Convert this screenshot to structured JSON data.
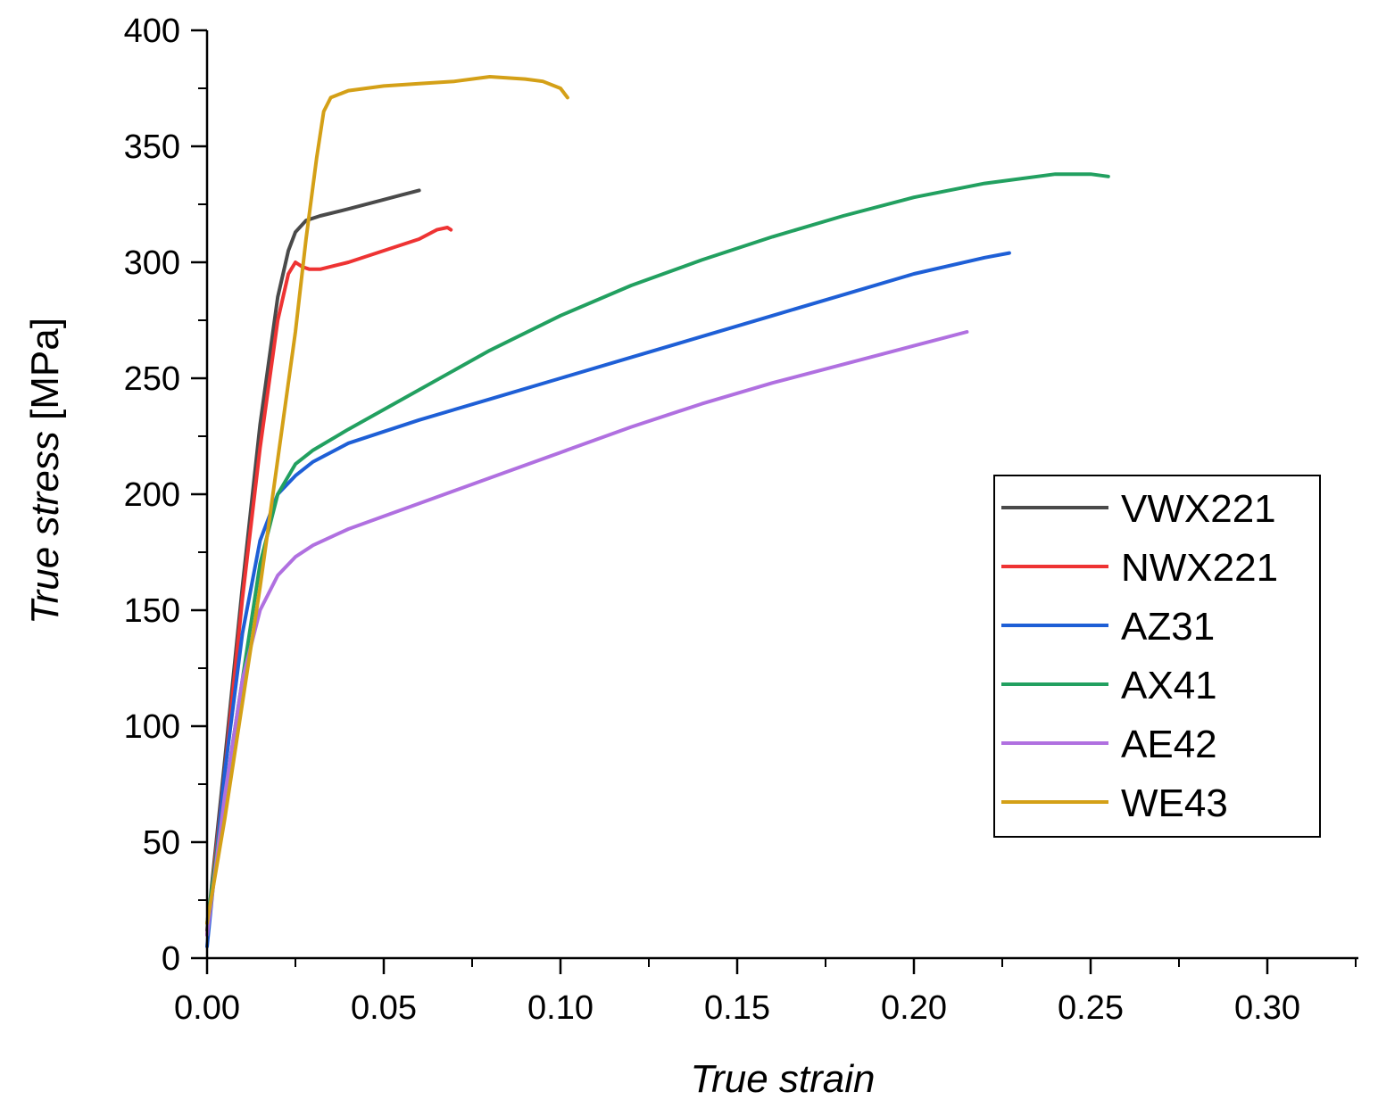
{
  "chart_data": {
    "type": "line",
    "title": "",
    "xlabel": "True strain",
    "ylabel_italic": "True stress",
    "ylabel_unit": " [MPa]",
    "xlim": [
      0,
      0.325
    ],
    "ylim": [
      0,
      400
    ],
    "x_ticks": [
      0.0,
      0.05,
      0.1,
      0.15,
      0.2,
      0.25,
      0.3
    ],
    "x_tick_labels": [
      "0.00",
      "0.05",
      "0.10",
      "0.15",
      "0.20",
      "0.25",
      "0.30"
    ],
    "y_ticks": [
      0,
      50,
      100,
      150,
      200,
      250,
      300,
      350,
      400
    ],
    "y_tick_labels": [
      "0",
      "50",
      "100",
      "150",
      "200",
      "250",
      "300",
      "350",
      "400"
    ],
    "grid": false,
    "legend_position": "right",
    "series": [
      {
        "name": "VWX221",
        "color": "#4a4a4a",
        "points": [
          [
            0,
            12
          ],
          [
            0.005,
            85
          ],
          [
            0.01,
            160
          ],
          [
            0.015,
            230
          ],
          [
            0.02,
            285
          ],
          [
            0.023,
            305
          ],
          [
            0.025,
            313
          ],
          [
            0.028,
            318
          ],
          [
            0.032,
            320
          ],
          [
            0.04,
            323
          ],
          [
            0.05,
            327
          ],
          [
            0.055,
            329
          ],
          [
            0.06,
            331
          ]
        ]
      },
      {
        "name": "NWX221",
        "color": "#ee3333",
        "points": [
          [
            0,
            10
          ],
          [
            0.005,
            80
          ],
          [
            0.01,
            155
          ],
          [
            0.015,
            220
          ],
          [
            0.02,
            275
          ],
          [
            0.023,
            295
          ],
          [
            0.025,
            300
          ],
          [
            0.027,
            298
          ],
          [
            0.029,
            297
          ],
          [
            0.032,
            297
          ],
          [
            0.04,
            300
          ],
          [
            0.05,
            305
          ],
          [
            0.06,
            310
          ],
          [
            0.065,
            314
          ],
          [
            0.068,
            315
          ],
          [
            0.069,
            314
          ]
        ]
      },
      {
        "name": "AZ31",
        "color": "#1e5fd6",
        "points": [
          [
            0,
            5
          ],
          [
            0.005,
            80
          ],
          [
            0.01,
            140
          ],
          [
            0.015,
            180
          ],
          [
            0.02,
            200
          ],
          [
            0.025,
            208
          ],
          [
            0.03,
            214
          ],
          [
            0.04,
            222
          ],
          [
            0.06,
            232
          ],
          [
            0.08,
            241
          ],
          [
            0.1,
            250
          ],
          [
            0.12,
            259
          ],
          [
            0.14,
            268
          ],
          [
            0.16,
            277
          ],
          [
            0.18,
            286
          ],
          [
            0.2,
            295
          ],
          [
            0.22,
            302
          ],
          [
            0.227,
            304
          ]
        ]
      },
      {
        "name": "AX41",
        "color": "#22a060",
        "points": [
          [
            0,
            15
          ],
          [
            0.005,
            70
          ],
          [
            0.01,
            120
          ],
          [
            0.015,
            170
          ],
          [
            0.02,
            200
          ],
          [
            0.025,
            213
          ],
          [
            0.03,
            219
          ],
          [
            0.04,
            228
          ],
          [
            0.06,
            245
          ],
          [
            0.08,
            262
          ],
          [
            0.1,
            277
          ],
          [
            0.12,
            290
          ],
          [
            0.14,
            301
          ],
          [
            0.16,
            311
          ],
          [
            0.18,
            320
          ],
          [
            0.2,
            328
          ],
          [
            0.22,
            334
          ],
          [
            0.24,
            338
          ],
          [
            0.25,
            338
          ],
          [
            0.255,
            337
          ]
        ]
      },
      {
        "name": "AE42",
        "color": "#b070e0",
        "points": [
          [
            0,
            10
          ],
          [
            0.005,
            70
          ],
          [
            0.01,
            120
          ],
          [
            0.015,
            150
          ],
          [
            0.02,
            165
          ],
          [
            0.025,
            173
          ],
          [
            0.03,
            178
          ],
          [
            0.04,
            185
          ],
          [
            0.06,
            196
          ],
          [
            0.08,
            207
          ],
          [
            0.1,
            218
          ],
          [
            0.12,
            229
          ],
          [
            0.14,
            239
          ],
          [
            0.16,
            248
          ],
          [
            0.18,
            256
          ],
          [
            0.2,
            264
          ],
          [
            0.215,
            270
          ]
        ]
      },
      {
        "name": "WE43",
        "color": "#d4a017",
        "points": [
          [
            0,
            15
          ],
          [
            0.005,
            60
          ],
          [
            0.01,
            110
          ],
          [
            0.015,
            160
          ],
          [
            0.02,
            215
          ],
          [
            0.025,
            270
          ],
          [
            0.028,
            310
          ],
          [
            0.031,
            345
          ],
          [
            0.033,
            365
          ],
          [
            0.035,
            371
          ],
          [
            0.04,
            374
          ],
          [
            0.05,
            376
          ],
          [
            0.06,
            377
          ],
          [
            0.07,
            378
          ],
          [
            0.08,
            380
          ],
          [
            0.09,
            379
          ],
          [
            0.095,
            378
          ],
          [
            0.1,
            375
          ],
          [
            0.102,
            371
          ]
        ]
      }
    ]
  }
}
